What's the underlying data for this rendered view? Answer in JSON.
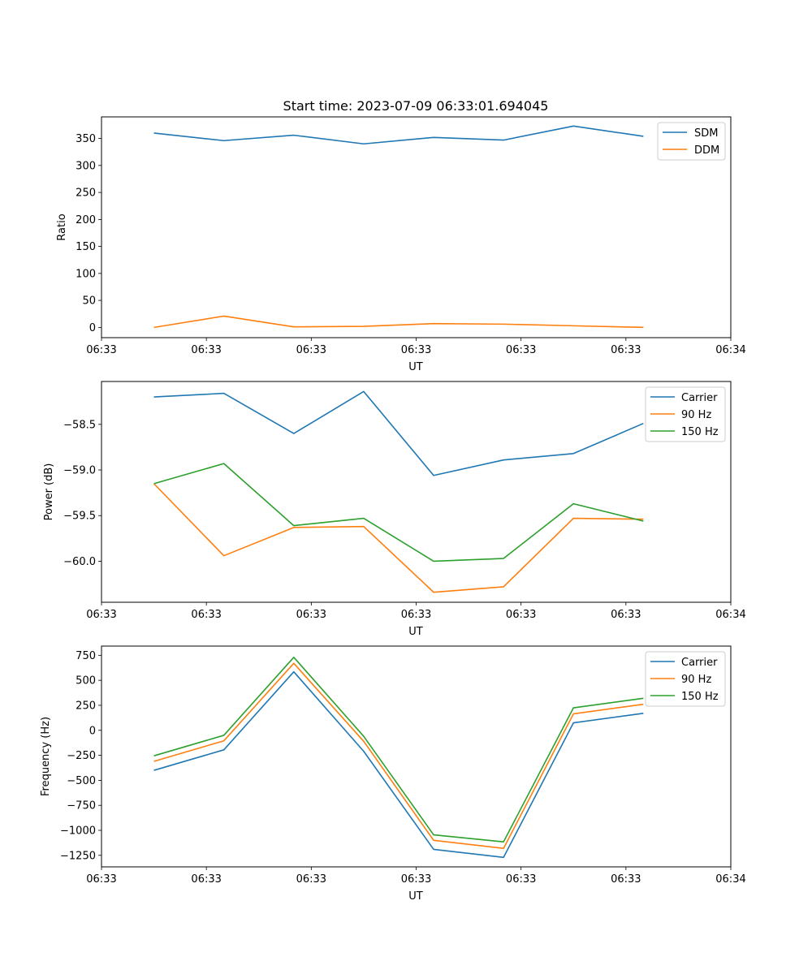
{
  "chart_data": [
    {
      "type": "line",
      "title": "Start time: 2023-07-09 06:33:01.694045",
      "xlabel": "UT",
      "ylabel": "Ratio",
      "x": [
        1,
        2,
        3,
        4,
        5,
        6,
        7,
        8
      ],
      "xlim": [
        0.25,
        9.25
      ],
      "xticks": [
        0.25,
        1.75,
        3.25,
        4.75,
        6.25,
        7.75,
        9.25
      ],
      "xtick_labels": [
        "06:33",
        "06:33",
        "06:33",
        "06:33",
        "06:33",
        "06:33",
        "06:34"
      ],
      "ylim": [
        -19,
        390
      ],
      "yticks": [
        0,
        50,
        100,
        150,
        200,
        250,
        300,
        350
      ],
      "ytick_labels": [
        "0",
        "50",
        "100",
        "150",
        "200",
        "250",
        "300",
        "350"
      ],
      "legend_position": "top-right",
      "series": [
        {
          "name": "SDM",
          "color": "#1f77b4",
          "values": [
            360,
            346,
            356,
            340,
            352,
            347,
            373,
            354
          ]
        },
        {
          "name": "DDM",
          "color": "#ff7f0e",
          "values": [
            0,
            21,
            1,
            2,
            7,
            6,
            3,
            0
          ]
        }
      ]
    },
    {
      "type": "line",
      "title": "",
      "xlabel": "UT",
      "ylabel": "Power (dB)",
      "x": [
        1,
        2,
        3,
        4,
        5,
        6,
        7,
        8
      ],
      "xlim": [
        0.25,
        9.25
      ],
      "xticks": [
        0.25,
        1.75,
        3.25,
        4.75,
        6.25,
        7.75,
        9.25
      ],
      "xtick_labels": [
        "06:33",
        "06:33",
        "06:33",
        "06:33",
        "06:33",
        "06:33",
        "06:34"
      ],
      "ylim": [
        -60.45,
        -58.03
      ],
      "yticks": [
        -60.0,
        -59.5,
        -59.0,
        -58.5
      ],
      "ytick_labels": [
        "−60.0",
        "−59.5",
        "−59.0",
        "−58.5"
      ],
      "legend_position": "top-right",
      "series": [
        {
          "name": "Carrier",
          "color": "#1f77b4",
          "values": [
            -58.2,
            -58.16,
            -58.6,
            -58.14,
            -59.06,
            -58.89,
            -58.82,
            -58.49
          ]
        },
        {
          "name": "90 Hz",
          "color": "#ff7f0e",
          "values": [
            -59.15,
            -59.94,
            -59.63,
            -59.62,
            -60.34,
            -60.28,
            -59.53,
            -59.54
          ]
        },
        {
          "name": "150 Hz",
          "color": "#2ca02c",
          "values": [
            -59.15,
            -58.93,
            -59.61,
            -59.53,
            -60.0,
            -59.97,
            -59.37,
            -59.56
          ]
        }
      ]
    },
    {
      "type": "line",
      "title": "",
      "xlabel": "UT",
      "ylabel": "Frequency (Hz)",
      "x": [
        1,
        2,
        3,
        4,
        5,
        6,
        7,
        8
      ],
      "xlim": [
        0.25,
        9.25
      ],
      "xticks": [
        0.25,
        1.75,
        3.25,
        4.75,
        6.25,
        7.75,
        9.25
      ],
      "xtick_labels": [
        "06:33",
        "06:33",
        "06:33",
        "06:33",
        "06:33",
        "06:33",
        "06:34"
      ],
      "ylim": [
        -1365,
        842
      ],
      "yticks": [
        -1250,
        -1000,
        -750,
        -500,
        -250,
        0,
        250,
        500,
        750
      ],
      "ytick_labels": [
        "−1250",
        "−1000",
        "−750",
        "−500",
        "−250",
        "0",
        "250",
        "500",
        "750"
      ],
      "legend_position": "top-right",
      "series": [
        {
          "name": "Carrier",
          "color": "#1f77b4",
          "values": [
            -400,
            -195,
            585,
            -210,
            -1190,
            -1270,
            75,
            170
          ]
        },
        {
          "name": "90 Hz",
          "color": "#ff7f0e",
          "values": [
            -310,
            -105,
            670,
            -110,
            -1100,
            -1180,
            165,
            260
          ]
        },
        {
          "name": "150 Hz",
          "color": "#2ca02c",
          "values": [
            -255,
            -50,
            730,
            -60,
            -1045,
            -1115,
            225,
            320
          ]
        }
      ]
    }
  ]
}
